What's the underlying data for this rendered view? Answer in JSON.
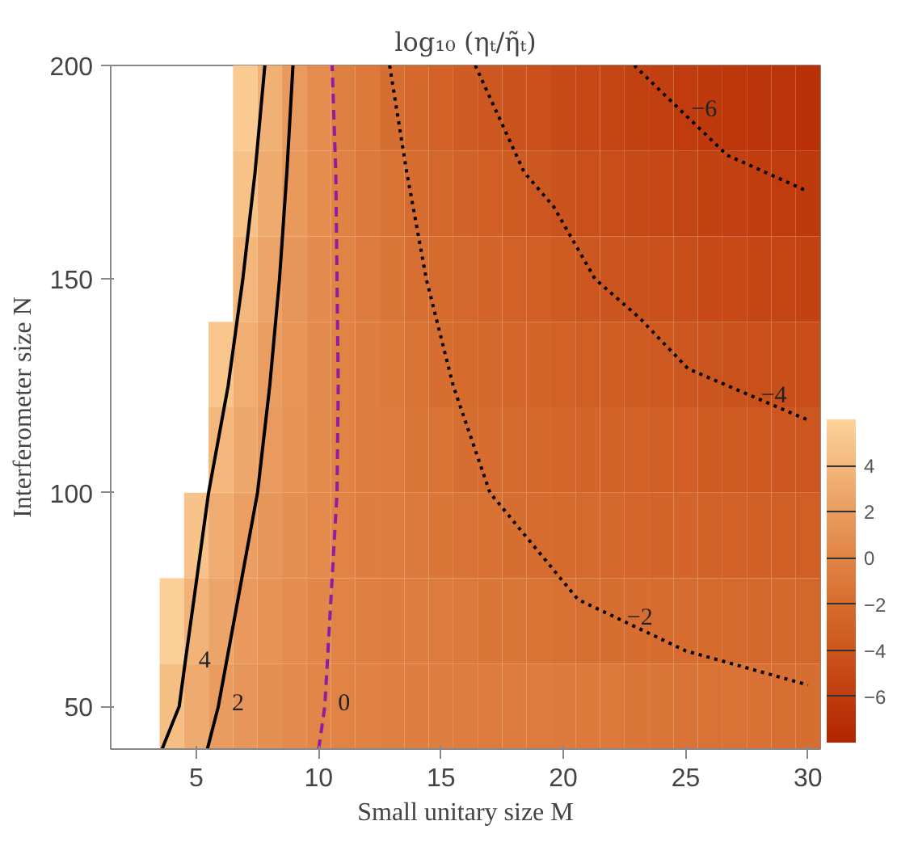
{
  "chart_data": {
    "type": "heatmap",
    "title": "log₁₀ (ηₜ/η̃ₜ)",
    "xlabel": "Small unitary size M",
    "ylabel": "Interferometer size N",
    "x": [
      2,
      3,
      4,
      5,
      6,
      7,
      8,
      9,
      10,
      11,
      12,
      13,
      14,
      15,
      16,
      17,
      18,
      19,
      20,
      21,
      22,
      23,
      24,
      25,
      26,
      27,
      28,
      29,
      30
    ],
    "y": [
      190,
      170,
      150,
      130,
      110,
      90,
      70,
      50
    ],
    "cells": [
      [
        null,
        null,
        null,
        null,
        null,
        5.3,
        3.5,
        1.8,
        0.7,
        -0.3,
        -1.1,
        -1.9,
        -2.4,
        -3.0,
        -3.5,
        -3.9,
        -4.2,
        -4.5,
        -4.8,
        -5.1,
        -5.3,
        -5.6,
        -5.8,
        -6.0,
        -6.2,
        -6.4,
        -6.6,
        -6.7,
        -6.9
      ],
      [
        null,
        null,
        null,
        null,
        null,
        4.7,
        3.0,
        1.7,
        0.7,
        -0.2,
        -0.9,
        -1.5,
        -2.1,
        -2.5,
        -2.9,
        -3.3,
        -3.6,
        -3.9,
        -4.2,
        -4.5,
        -4.7,
        -4.9,
        -5.1,
        -5.3,
        -5.5,
        -5.7,
        -5.9,
        -6.0,
        -6.2
      ],
      [
        null,
        null,
        null,
        null,
        null,
        3.9,
        2.5,
        1.5,
        0.6,
        -0.1,
        -0.7,
        -1.2,
        -1.8,
        -2.2,
        -2.5,
        -2.8,
        -3.0,
        -3.3,
        -3.6,
        -3.9,
        -4.1,
        -4.3,
        -4.5,
        -4.6,
        -4.8,
        -5.0,
        -5.2,
        -5.3,
        -5.5
      ],
      [
        null,
        null,
        null,
        null,
        5.0,
        3.3,
        2.1,
        1.3,
        0.6,
        -0.1,
        -0.5,
        -1.0,
        -1.5,
        -1.9,
        -2.2,
        -2.4,
        -2.6,
        -2.7,
        -3.0,
        -3.2,
        -3.4,
        -3.6,
        -3.7,
        -3.9,
        -4.1,
        -4.3,
        -4.4,
        -4.6,
        -4.7
      ],
      [
        null,
        null,
        null,
        null,
        4.0,
        2.8,
        1.8,
        1.2,
        0.5,
        -0.1,
        -0.4,
        -0.8,
        -1.2,
        -1.6,
        -1.9,
        -2.1,
        -2.3,
        -2.4,
        -2.6,
        -2.7,
        -2.9,
        -3.0,
        -3.1,
        -3.3,
        -3.5,
        -3.6,
        -3.7,
        -3.9,
        -4.0
      ],
      [
        null,
        null,
        null,
        4.8,
        3.2,
        2.2,
        1.5,
        1.0,
        0.4,
        -0.1,
        -0.4,
        -0.6,
        -0.9,
        -1.2,
        -1.5,
        -1.7,
        -1.9,
        -2.1,
        -2.2,
        -2.3,
        -2.5,
        -2.6,
        -2.7,
        -2.7,
        -2.9,
        -3.0,
        -3.1,
        -3.2,
        -3.3
      ],
      [
        null,
        null,
        5.6,
        3.7,
        2.6,
        1.7,
        1.2,
        0.8,
        0.3,
        -0.1,
        -0.3,
        -0.5,
        -0.6,
        -0.8,
        -1.0,
        -1.2,
        -1.3,
        -1.5,
        -1.7,
        -1.8,
        -1.9,
        -2.0,
        -2.1,
        -2.1,
        -2.2,
        -2.3,
        -2.4,
        -2.4,
        -2.5
      ],
      [
        null,
        null,
        4.5,
        3.1,
        2.0,
        1.5,
        1.0,
        0.6,
        0.1,
        -0.1,
        -0.2,
        -0.3,
        -0.4,
        -0.5,
        -0.6,
        -0.7,
        -0.7,
        -0.8,
        -0.9,
        -1.0,
        -1.1,
        -1.2,
        -1.3,
        -1.4,
        -1.5,
        -1.6,
        -1.7,
        -1.8,
        -1.9
      ]
    ],
    "colors": [
      "#b32400",
      "#c03c0e",
      "#cc561f",
      "#d76d30",
      "#e08446",
      "#ea9c60",
      "#f3b77c",
      "#fcd49c"
    ],
    "clim": [
      -8,
      6
    ],
    "cticks": [
      -6,
      -4,
      -2,
      0,
      2,
      4
    ],
    "xlim": [
      1.5,
      30.5
    ],
    "ylim": [
      40,
      200
    ],
    "xticks": [
      5,
      10,
      15,
      20,
      25,
      30
    ],
    "yticks": [
      50,
      100,
      150,
      200
    ],
    "grid": false,
    "series": [
      {
        "type": "line",
        "color": "#000000",
        "line_style": "solid",
        "x": [
          3.6,
          4.3,
          4.56,
          4.9,
          5.5,
          6.3,
          6.9,
          7.4,
          7.8
        ],
        "values": [
          40,
          50,
          61,
          75,
          100,
          125,
          150,
          175,
          200
        ]
      },
      {
        "type": "line",
        "color": "#000000",
        "line_style": "solid",
        "x": [
          5.45,
          5.9,
          5.93,
          6.7,
          7.5,
          8.0,
          8.4,
          8.7,
          8.95
        ],
        "values": [
          40,
          50,
          51,
          75,
          100,
          125,
          150,
          175,
          200
        ]
      },
      {
        "type": "line",
        "color": "#8e1ea0",
        "line_style": "dashed",
        "x": [
          10.0,
          10.25,
          10.26,
          10.5,
          10.75,
          10.8,
          10.75,
          10.7,
          10.55
        ],
        "values": [
          40,
          50,
          51,
          75,
          100,
          125,
          150,
          175,
          200
        ]
      },
      {
        "type": "line",
        "color": "#000000",
        "line_style": "dotted",
        "x": [
          12.9,
          13.6,
          14.4,
          15.5,
          17.0,
          20.6,
          22.07,
          25,
          30
        ],
        "values": [
          200,
          175,
          150,
          125,
          100,
          75,
          71,
          63,
          55
        ]
      },
      {
        "type": "line",
        "color": "#000000",
        "line_style": "dotted",
        "x": [
          16.4,
          18.4,
          19.6,
          21.3,
          23.1,
          25.1,
          27.55,
          30
        ],
        "values": [
          200,
          175,
          167,
          150,
          141,
          129,
          123,
          117
        ]
      },
      {
        "type": "line",
        "color": "#000000",
        "line_style": "dotted",
        "x": [
          22.9,
          24.7,
          26.7,
          30
        ],
        "values": [
          200,
          190,
          179,
          170.5
        ]
      }
    ],
    "annotations": [
      {
        "text": "4",
        "x": 4.56,
        "y": 61
      },
      {
        "text": "2",
        "x": 5.93,
        "y": 51
      },
      {
        "text": "0",
        "x": 10.26,
        "y": 51
      },
      {
        "text": "−2",
        "x": 22.07,
        "y": 71
      },
      {
        "text": "−4",
        "x": 27.55,
        "y": 123
      },
      {
        "text": "−6",
        "x": 24.7,
        "y": 190
      }
    ]
  }
}
